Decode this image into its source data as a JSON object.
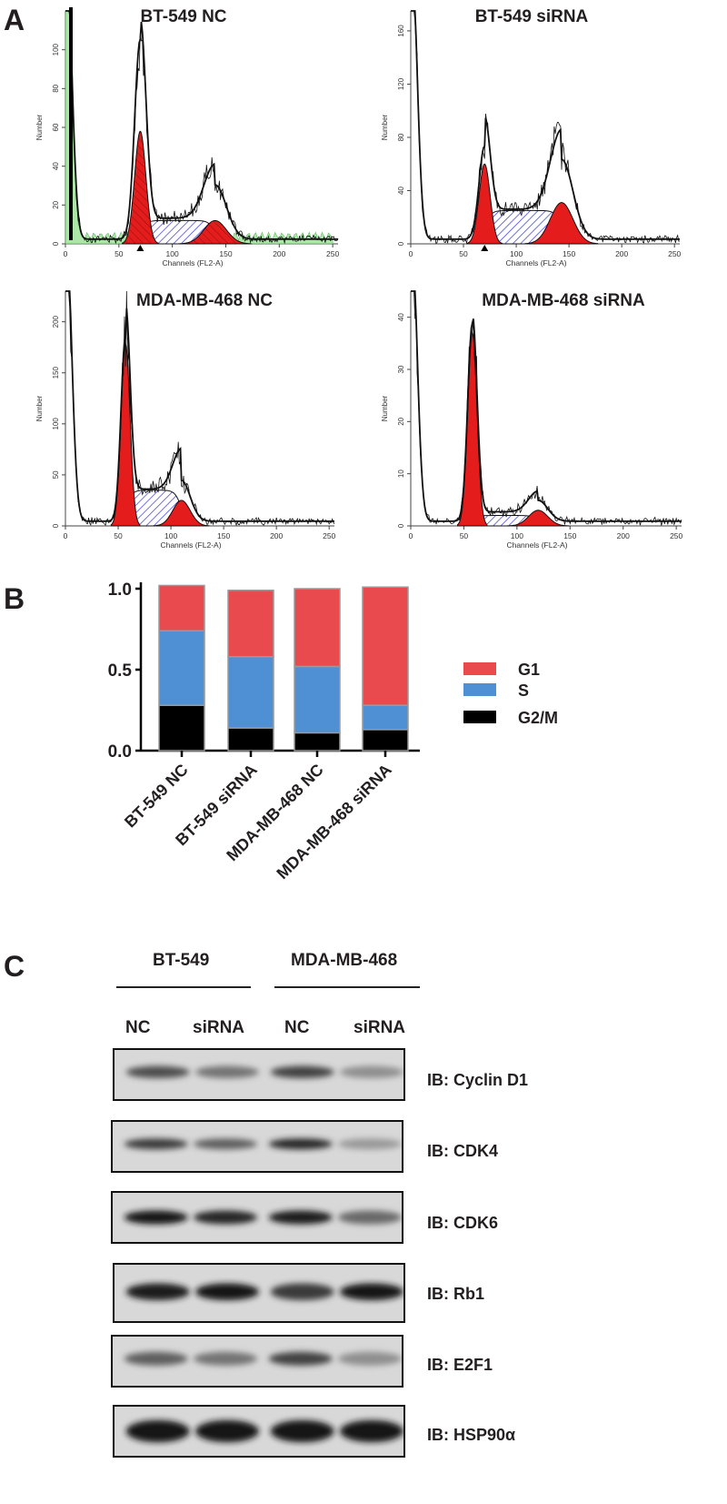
{
  "panels": {
    "a": "A",
    "b": "B",
    "c": "C"
  },
  "flow": {
    "plots": [
      {
        "title": "BT-549 NC",
        "ylabel": "Number",
        "xlabel": "Channels (FL2-A)",
        "xticks": [
          0,
          50,
          100,
          150,
          200,
          250
        ],
        "yticks": [
          0,
          20,
          40,
          60,
          80,
          100
        ],
        "ymax": 120,
        "g1_channel": 70,
        "g1_peak": 58,
        "g2_channel": 140,
        "g2_peak": 12,
        "s_level": 12,
        "total_peak": 103,
        "total_g2": 28,
        "has_debris_fill": true,
        "has_marker": true
      },
      {
        "title": "BT-549 siRNA",
        "ylabel": "Number",
        "xlabel": "Channels (FL2-A)",
        "xticks": [
          0,
          50,
          100,
          150,
          200,
          250
        ],
        "yticks": [
          0,
          40,
          80,
          120,
          160
        ],
        "ymax": 175,
        "g1_channel": 70,
        "g1_peak": 60,
        "g2_channel": 143,
        "g2_peak": 31,
        "s_level": 25,
        "total_peak": 70,
        "total_g2": 60,
        "has_debris_fill": false,
        "has_marker": true
      },
      {
        "title": "MDA-MB-468 NC",
        "ylabel": "Number",
        "xlabel": "Channels (FL2-A)",
        "xticks": [
          0,
          50,
          100,
          150,
          200,
          250
        ],
        "yticks": [
          0,
          50,
          100,
          150,
          200
        ],
        "ymax": 230,
        "g1_channel": 57,
        "g1_peak": 178,
        "g2_channel": 110,
        "g2_peak": 25,
        "s_level": 35,
        "total_peak": 182,
        "total_g2": 40,
        "has_debris_fill": false,
        "has_marker": false
      },
      {
        "title": "MDA-MB-468 siRNA",
        "ylabel": "Number",
        "xlabel": "Channels (FL2-A)",
        "xticks": [
          0,
          50,
          100,
          150,
          200,
          250
        ],
        "yticks": [
          0,
          10,
          20,
          30,
          40
        ],
        "ymax": 45,
        "g1_channel": 58,
        "g1_peak": 37,
        "g2_channel": 120,
        "g2_peak": 3,
        "s_level": 2,
        "total_peak": 38,
        "total_g2": 4,
        "has_debris_fill": false,
        "has_marker": false
      }
    ]
  },
  "chart_data": {
    "type": "bar",
    "stacked": true,
    "categories": [
      "BT-549 NC",
      "BT-549 siRNA",
      "MDA-MB-468 NC",
      "MDA-MB-468 siRNA"
    ],
    "series": [
      {
        "name": "G2/M",
        "values": [
          0.28,
          0.14,
          0.11,
          0.13
        ]
      },
      {
        "name": "S",
        "values": [
          0.46,
          0.44,
          0.41,
          0.15
        ]
      },
      {
        "name": "G1",
        "values": [
          0.28,
          0.41,
          0.48,
          0.73
        ]
      }
    ],
    "legend": [
      "G1",
      "S",
      "G2/M"
    ],
    "yticks": [
      "0.0",
      "0.5",
      "1.0"
    ],
    "ylim": [
      0,
      1.1
    ],
    "colors": {
      "G1": "#e84a4d",
      "S": "#4f8fd4",
      "G2/M": "#000000"
    }
  },
  "blot": {
    "groups": [
      {
        "name": "BT-549",
        "lanes": [
          "NC",
          "siRNA"
        ]
      },
      {
        "name": "MDA-MB-468",
        "lanes": [
          "NC",
          "siRNA"
        ]
      }
    ],
    "rows": [
      {
        "label": "IB: Cyclin D1",
        "intensity": [
          0.65,
          0.45,
          0.7,
          0.3
        ]
      },
      {
        "label": "IB: CDK4",
        "intensity": [
          0.75,
          0.55,
          0.85,
          0.25
        ]
      },
      {
        "label": "IB: CDK6",
        "intensity": [
          0.95,
          0.85,
          0.9,
          0.5
        ]
      },
      {
        "label": "IB: Rb1",
        "intensity": [
          0.9,
          0.92,
          0.75,
          0.95
        ]
      },
      {
        "label": "IB: E2F1",
        "intensity": [
          0.55,
          0.45,
          0.7,
          0.3
        ]
      },
      {
        "label": "IB: HSP90α",
        "intensity": [
          0.95,
          0.95,
          0.95,
          0.95
        ]
      }
    ]
  }
}
